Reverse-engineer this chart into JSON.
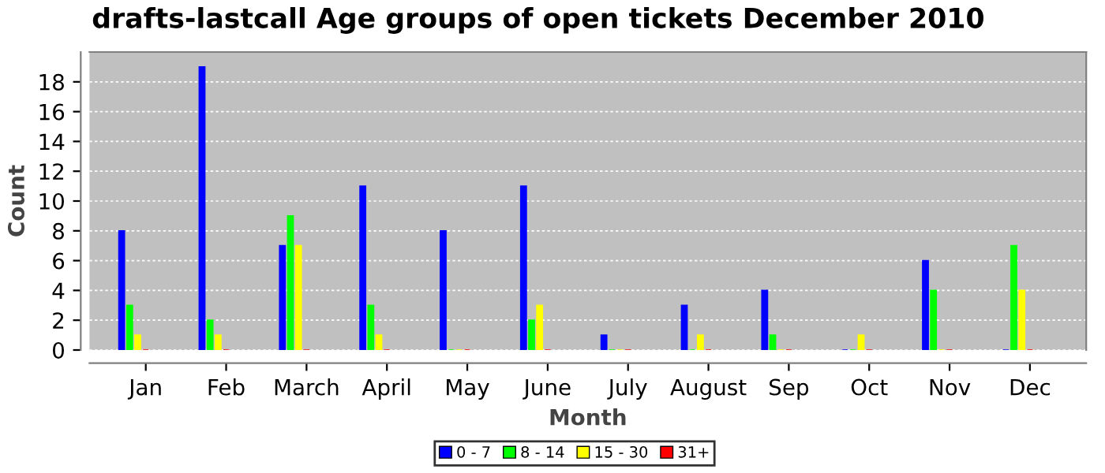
{
  "chart_data": {
    "type": "bar",
    "title": "drafts-lastcall Age groups of open tickets December 2010",
    "xlabel": "Month",
    "ylabel": "Count",
    "categories": [
      "Jan",
      "Feb",
      "March",
      "April",
      "May",
      "June",
      "July",
      "August",
      "Sep",
      "Oct",
      "Nov",
      "Dec"
    ],
    "series": [
      {
        "name": "0 - 7",
        "color": "#0000ff",
        "values": [
          8,
          19,
          7,
          11,
          8,
          11,
          1,
          3,
          4,
          0,
          6,
          0
        ]
      },
      {
        "name": "8 - 14",
        "color": "#00ff00",
        "values": [
          3,
          2,
          9,
          3,
          0,
          2,
          0,
          0,
          1,
          0,
          4,
          7
        ]
      },
      {
        "name": "15 - 30",
        "color": "#ffff00",
        "values": [
          1,
          1,
          7,
          1,
          0,
          3,
          0,
          1,
          0,
          1,
          0,
          4
        ]
      },
      {
        "name": "31+",
        "color": "#ff0000",
        "values": [
          0,
          0,
          0,
          0,
          0,
          0,
          0,
          0,
          0,
          0,
          0,
          0
        ]
      }
    ],
    "ylim": [
      0,
      20
    ],
    "yticks": [
      0,
      2,
      4,
      6,
      8,
      10,
      12,
      14,
      16,
      18
    ],
    "grid": "y",
    "legend": "bottom"
  }
}
